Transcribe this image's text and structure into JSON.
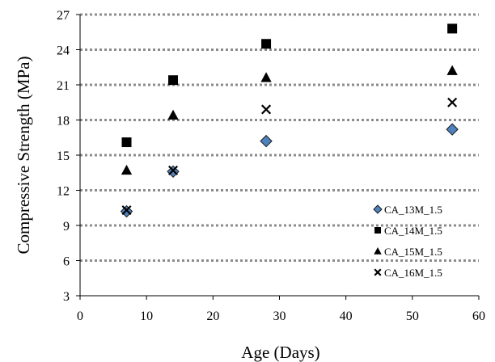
{
  "chart_data": {
    "type": "scatter",
    "title": "",
    "xlabel": "Age (Days)",
    "ylabel": "Compressive Strength (MPa)",
    "xlim": [
      0,
      60
    ],
    "ylim": [
      3,
      27
    ],
    "xticks": [
      0,
      10,
      20,
      30,
      40,
      50,
      60
    ],
    "yticks": [
      3,
      6,
      9,
      12,
      15,
      18,
      21,
      24,
      27
    ],
    "grid": "horizontal dotted",
    "legend_position": "bottom-right",
    "series": [
      {
        "name": "CA_13M_1.5",
        "marker": "diamond",
        "color": "#4f81bd",
        "x": [
          7,
          14,
          28,
          56
        ],
        "y": [
          10.2,
          13.6,
          16.2,
          17.2
        ]
      },
      {
        "name": "CA_14M_1.5",
        "marker": "square",
        "color": "#000000",
        "x": [
          7,
          14,
          28,
          56
        ],
        "y": [
          16.1,
          21.4,
          24.5,
          25.8
        ]
      },
      {
        "name": "CA_15M_1.5",
        "marker": "triangle",
        "color": "#000000",
        "x": [
          7,
          14,
          28,
          56
        ],
        "y": [
          13.7,
          18.4,
          21.6,
          22.2
        ]
      },
      {
        "name": "CA_16M_1.5",
        "marker": "cross",
        "color": "#000000",
        "x": [
          7,
          14,
          28,
          56
        ],
        "y": [
          10.3,
          13.7,
          18.9,
          19.5
        ]
      }
    ]
  }
}
